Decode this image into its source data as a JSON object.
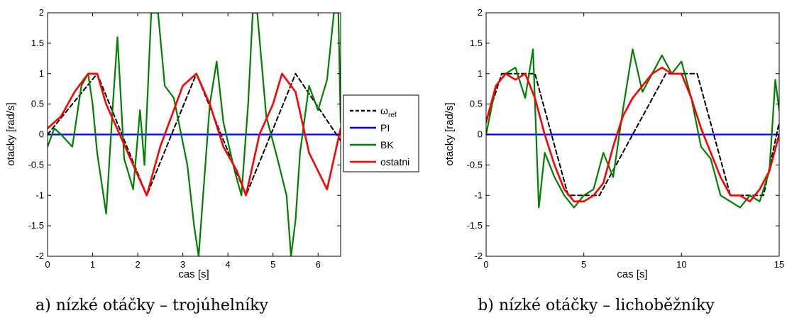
{
  "chart_data": [
    {
      "type": "line",
      "caption": "a) nízké otáčky – trojúhelníky",
      "xlabel": "cas [s]",
      "ylabel": "otacky [rad/s]",
      "xlim": [
        0,
        6.5
      ],
      "ylim": [
        -2,
        2
      ],
      "xticks": [
        0,
        1,
        2,
        3,
        4,
        5,
        6
      ],
      "yticks": [
        -2,
        -1.5,
        -1,
        -0.5,
        0,
        0.5,
        1,
        1.5,
        2
      ],
      "grid": false,
      "legend": {
        "placement": "outside-right",
        "entries": [
          "ω_ref",
          "PI",
          "BK",
          "ostatni"
        ]
      },
      "series": [
        {
          "name": "ω_ref",
          "style": "dashed",
          "color": "#000000",
          "x": [
            0,
            1.1,
            2.2,
            3.3,
            4.4,
            5.5,
            6.5
          ],
          "y": [
            0,
            1.0,
            -1.0,
            1.0,
            -1.0,
            1.0,
            -0.1
          ]
        },
        {
          "name": "PI",
          "style": "solid",
          "color": "#0000ff",
          "x": [
            0,
            6.5
          ],
          "y": [
            0,
            0
          ]
        },
        {
          "name": "BK",
          "style": "solid",
          "color": "#008000",
          "x": [
            0,
            0.15,
            0.3,
            0.55,
            0.75,
            0.9,
            1.0,
            1.1,
            1.3,
            1.45,
            1.55,
            1.7,
            1.9,
            2.05,
            2.15,
            2.3,
            2.45,
            2.6,
            2.8,
            3.1,
            3.25,
            3.35,
            3.45,
            3.6,
            3.75,
            3.9,
            4.15,
            4.3,
            4.45,
            4.55,
            4.65,
            4.85,
            5.1,
            5.3,
            5.4,
            5.5,
            5.6,
            5.8,
            6.0,
            6.2,
            6.35,
            6.45,
            6.5
          ],
          "y": [
            -0.2,
            0.1,
            0.0,
            -0.2,
            0.8,
            1.0,
            0.5,
            -0.3,
            -1.3,
            0.5,
            1.6,
            -0.4,
            -0.9,
            0.4,
            -0.5,
            2.0,
            2.0,
            0.8,
            0.6,
            -0.5,
            -1.5,
            -2.0,
            -1.0,
            0.5,
            1.2,
            0.2,
            -0.6,
            -1.0,
            0.5,
            2.0,
            2.0,
            0.3,
            -0.4,
            -1.0,
            -2.0,
            -1.4,
            -0.3,
            0.8,
            0.4,
            0.9,
            2.0,
            2.0,
            0.2
          ]
        },
        {
          "name": "ostatni",
          "style": "solid",
          "color": "#ff0000",
          "x": [
            0,
            0.3,
            0.6,
            0.9,
            1.1,
            1.3,
            1.6,
            1.9,
            2.2,
            2.5,
            2.8,
            3.0,
            3.3,
            3.6,
            3.9,
            4.2,
            4.4,
            4.7,
            5.0,
            5.2,
            5.5,
            5.8,
            6.0,
            6.2,
            6.5
          ],
          "y": [
            0.1,
            0.3,
            0.7,
            1.0,
            1.0,
            0.5,
            0.0,
            -0.5,
            -1.0,
            -0.2,
            0.4,
            0.8,
            1.0,
            0.5,
            -0.2,
            -0.6,
            -1.0,
            0.0,
            0.5,
            1.0,
            0.7,
            -0.3,
            -0.6,
            -0.9,
            0.1
          ]
        }
      ]
    },
    {
      "type": "line",
      "caption": "b) nízké otáčky – lichoběžníky",
      "xlabel": "cas [s]",
      "ylabel": "otacky [rad/s]",
      "xlim": [
        0,
        15
      ],
      "ylim": [
        -2,
        2
      ],
      "xticks": [
        0,
        5,
        10,
        15
      ],
      "yticks": [
        -2,
        -1.5,
        -1,
        -0.5,
        0,
        0.5,
        1,
        1.5,
        2
      ],
      "grid": false,
      "series": [
        {
          "name": "ω_ref",
          "style": "dashed",
          "color": "#000000",
          "x": [
            0,
            0.8,
            2.5,
            4.2,
            5.8,
            7.5,
            9.2,
            10.8,
            12.5,
            14.2,
            15
          ],
          "y": [
            0.2,
            1.0,
            1.0,
            -1.0,
            -1.0,
            0.0,
            1.0,
            1.0,
            -1.0,
            -1.0,
            0.2
          ]
        },
        {
          "name": "PI",
          "style": "solid",
          "color": "#0000ff",
          "x": [
            0,
            15
          ],
          "y": [
            0,
            0
          ]
        },
        {
          "name": "BK",
          "style": "solid",
          "color": "#008000",
          "x": [
            0,
            0.5,
            1.0,
            1.5,
            2.0,
            2.4,
            2.7,
            3.0,
            3.5,
            4.0,
            4.5,
            5.0,
            5.5,
            6.0,
            6.5,
            7.0,
            7.5,
            8.0,
            8.5,
            9.0,
            9.5,
            10.0,
            10.5,
            11.0,
            11.5,
            12.0,
            12.5,
            13.0,
            13.5,
            14.0,
            14.5,
            14.8,
            15
          ],
          "y": [
            0.0,
            0.8,
            1.0,
            1.1,
            0.6,
            1.4,
            -1.2,
            -0.3,
            -0.7,
            -1.0,
            -1.2,
            -1.0,
            -0.9,
            -0.3,
            -0.7,
            0.4,
            1.4,
            0.7,
            1.0,
            1.3,
            1.0,
            1.2,
            0.6,
            -0.2,
            -0.4,
            -1.0,
            -1.1,
            -1.2,
            -1.0,
            -1.1,
            -0.6,
            0.9,
            0.4
          ]
        },
        {
          "name": "ostatni",
          "style": "solid",
          "color": "#ff0000",
          "x": [
            0,
            0.5,
            1.0,
            1.5,
            2.0,
            2.5,
            3.0,
            3.5,
            4.0,
            4.5,
            5.0,
            5.5,
            6.0,
            6.5,
            7.0,
            7.5,
            8.0,
            8.5,
            9.0,
            9.5,
            10.0,
            10.5,
            11.0,
            11.5,
            12.0,
            12.5,
            13.0,
            13.5,
            14.0,
            14.5,
            15
          ],
          "y": [
            0.2,
            0.8,
            1.0,
            0.9,
            1.0,
            0.6,
            0.0,
            -0.5,
            -0.9,
            -1.1,
            -1.1,
            -1.0,
            -0.8,
            -0.2,
            0.3,
            0.6,
            0.8,
            1.0,
            1.1,
            1.0,
            1.0,
            0.6,
            0.1,
            -0.3,
            -0.7,
            -1.0,
            -1.0,
            -1.1,
            -0.9,
            -0.6,
            0.0
          ]
        }
      ]
    }
  ]
}
